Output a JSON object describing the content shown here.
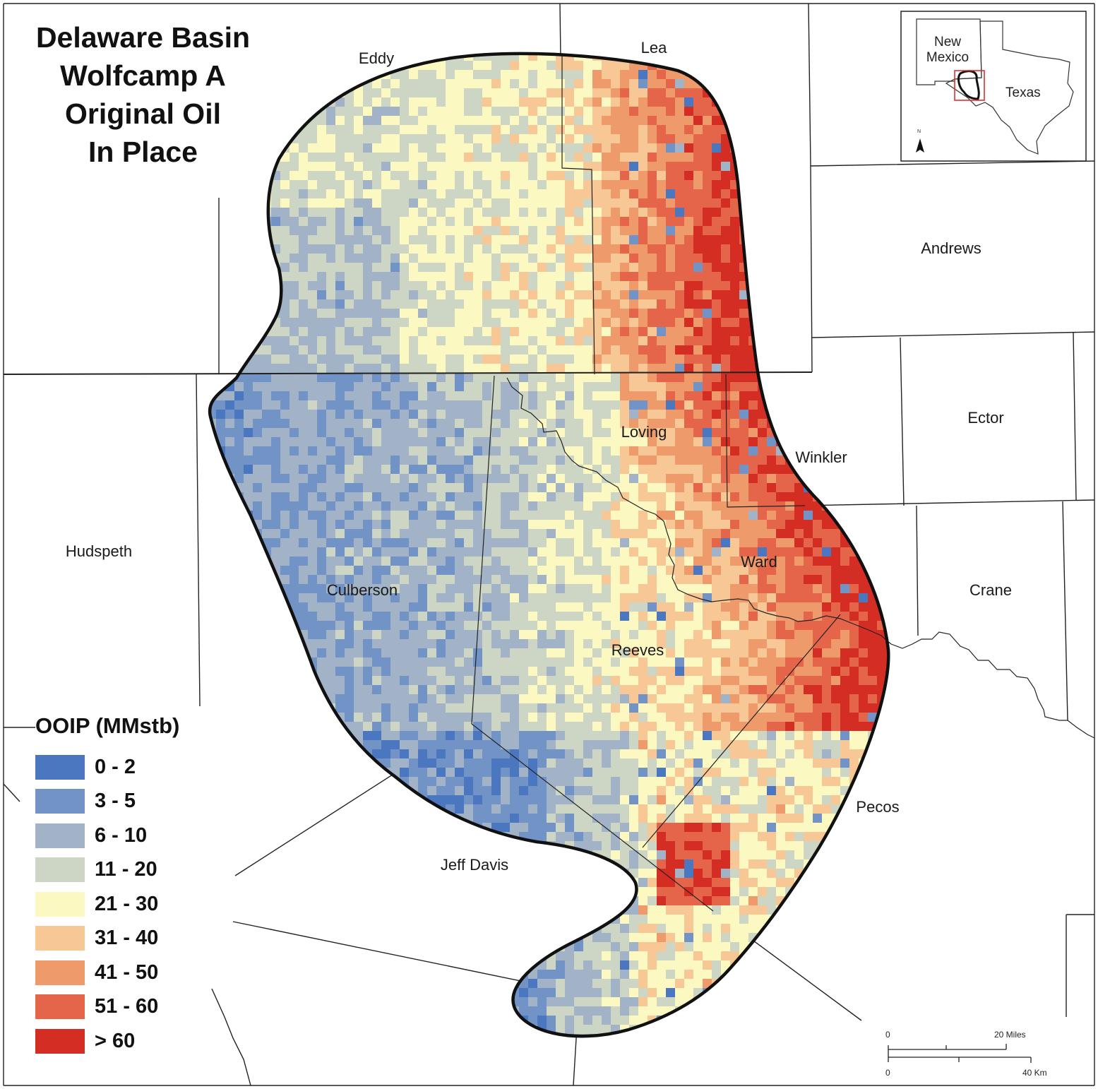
{
  "title": {
    "lines": [
      "Delaware Basin",
      "Wolfcamp A",
      "Original Oil",
      "In Place"
    ]
  },
  "counties": {
    "eddy": "Eddy",
    "lea": "Lea",
    "andrews": "Andrews",
    "ector": "Ector",
    "loving": "Loving",
    "winkler": "Winkler",
    "hudspeth": "Hudspeth",
    "culberson": "Culberson",
    "ward": "Ward",
    "crane": "Crane",
    "reeves": "Reeves",
    "pecos": "Pecos",
    "jeff_davis": "Jeff Davis"
  },
  "legend": {
    "title": "OOIP (MMstb)",
    "classes": [
      {
        "label": "0 - 2",
        "color": "#4a77bf"
      },
      {
        "label": "3 - 5",
        "color": "#7193c6"
      },
      {
        "label": "6 - 10",
        "color": "#a2b3c7"
      },
      {
        "label": "11 - 20",
        "color": "#cdd6c4"
      },
      {
        "label": "21 - 30",
        "color": "#fcf8c2"
      },
      {
        "label": "31 - 40",
        "color": "#f7c795"
      },
      {
        "label": "41 - 50",
        "color": "#ef9a6b"
      },
      {
        "label": "51 - 60",
        "color": "#e4654a"
      },
      {
        "label": "> 60",
        "color": "#d42e24"
      }
    ]
  },
  "inset": {
    "new_mexico": [
      "New",
      "Mexico"
    ],
    "texas": "Texas",
    "north_label": "N"
  },
  "scale_bar": {
    "miles_start": "0",
    "miles_end": "20 Miles",
    "km_start": "0",
    "km_end": "40 Km"
  }
}
